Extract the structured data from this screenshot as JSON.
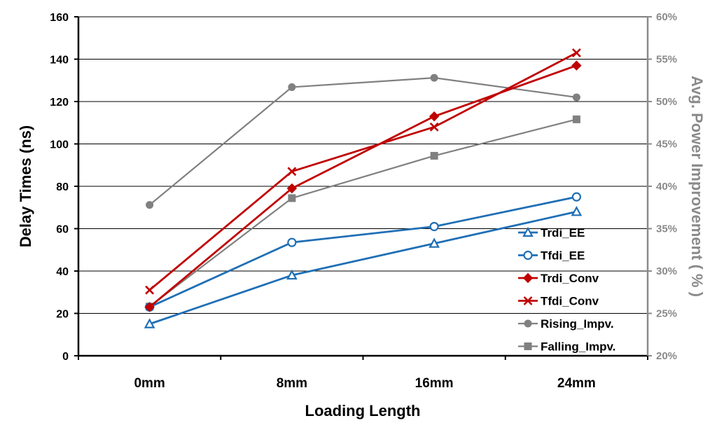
{
  "chart_data": {
    "type": "line",
    "categories": [
      "0mm",
      "8mm",
      "16mm",
      "24mm"
    ],
    "xlabel": "Loading Length",
    "ylabel": "Delay Times (ns)",
    "ylabel_right": "Avg. Power Improvement ( % )",
    "ylim": [
      0,
      160
    ],
    "yticks": [
      0,
      20,
      40,
      60,
      80,
      100,
      120,
      140,
      160
    ],
    "ylim_right": [
      20,
      60
    ],
    "yticks_right": [
      "20%",
      "25%",
      "30%",
      "35%",
      "40%",
      "45%",
      "50%",
      "55%",
      "60%"
    ],
    "grid": true,
    "legend_position": "inside-right",
    "series": [
      {
        "name": "Trdi_EE",
        "axis": "left",
        "marker": "triangle-open",
        "color": "#1f6fb5",
        "values": [
          15,
          38,
          53,
          68
        ]
      },
      {
        "name": "Tfdi_EE",
        "axis": "left",
        "marker": "circle-open",
        "color": "#1f6fb5",
        "values": [
          23,
          53.5,
          61,
          75
        ]
      },
      {
        "name": "Trdi_Conv",
        "axis": "left",
        "marker": "diamond",
        "color": "#c00000",
        "values": [
          23,
          79,
          113,
          137
        ]
      },
      {
        "name": "Tfdi_Conv",
        "axis": "left",
        "marker": "x",
        "color": "#c00000",
        "values": [
          31,
          87,
          108,
          143
        ]
      },
      {
        "name": "Rising_Impv.",
        "axis": "right",
        "marker": "circle",
        "color": "#808080",
        "values": [
          37.8,
          51.7,
          52.8,
          50.5
        ]
      },
      {
        "name": "Falling_Impv.",
        "axis": "right",
        "marker": "square",
        "color": "#808080",
        "values": [
          25.8,
          38.6,
          43.6,
          47.9
        ]
      }
    ]
  }
}
